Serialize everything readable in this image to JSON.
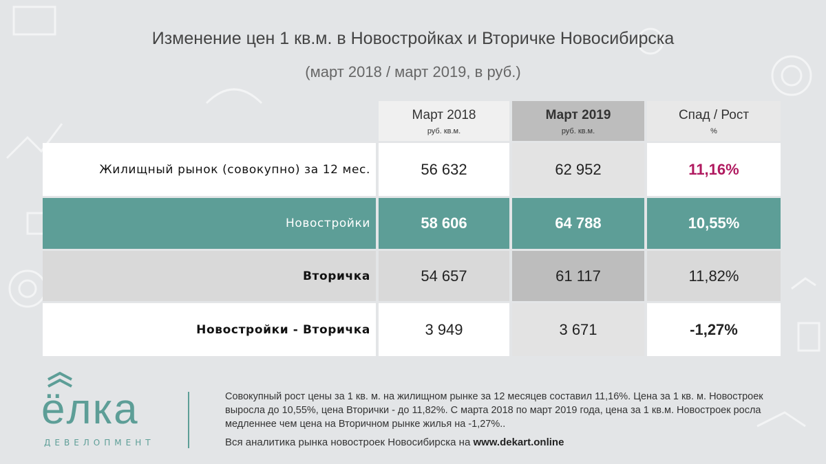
{
  "title": "Изменение цен 1 кв.м. в Новостройках и Вторичке Новосибирска",
  "subtitle": "(март 2018 / март 2019, в руб.)",
  "chart_data": {
    "type": "table",
    "columns": [
      {
        "label": "Март 2018",
        "unit": "руб. кв.м."
      },
      {
        "label": "Март 2019",
        "unit": "руб. кв.м."
      },
      {
        "label": "Спад / Рост",
        "unit": "%"
      }
    ],
    "rows": [
      {
        "label": "Жилищный рынок (совокупно) за 12 мес.",
        "values": [
          "56 632",
          "62 952",
          "11,16%"
        ]
      },
      {
        "label": "Новостройки",
        "values": [
          "58 606",
          "64 788",
          "10,55%"
        ]
      },
      {
        "label": "Вторичка",
        "values": [
          "54 657",
          "61 117",
          "11,82%"
        ]
      },
      {
        "label": "Новостройки - Вторичка",
        "values": [
          "3 949",
          "3 671",
          "-1,27%"
        ]
      }
    ],
    "colors": {
      "accent": "#5d9e97",
      "highlight": "#b0195f"
    }
  },
  "logo": {
    "word": "ёлка",
    "sub": "ДЕВЕЛОПМЕНТ"
  },
  "note": "Совокупный рост цены за 1 кв. м. на жилищном рынке за 12 месяцев составил 11,16%. Цена за 1 кв. м. Новостроек выросла до 10,55%, цена Вторички - до 11,82%. С марта 2018 по март 2019 года, цена за 1 кв.м. Новостроек росла медленнее чем цена на Вторичном рынке жилья на -1,27%..",
  "analytics": {
    "prefix": "Вся аналитика рынка новостроек Новосибирска на ",
    "site": "www.dekart.online"
  }
}
